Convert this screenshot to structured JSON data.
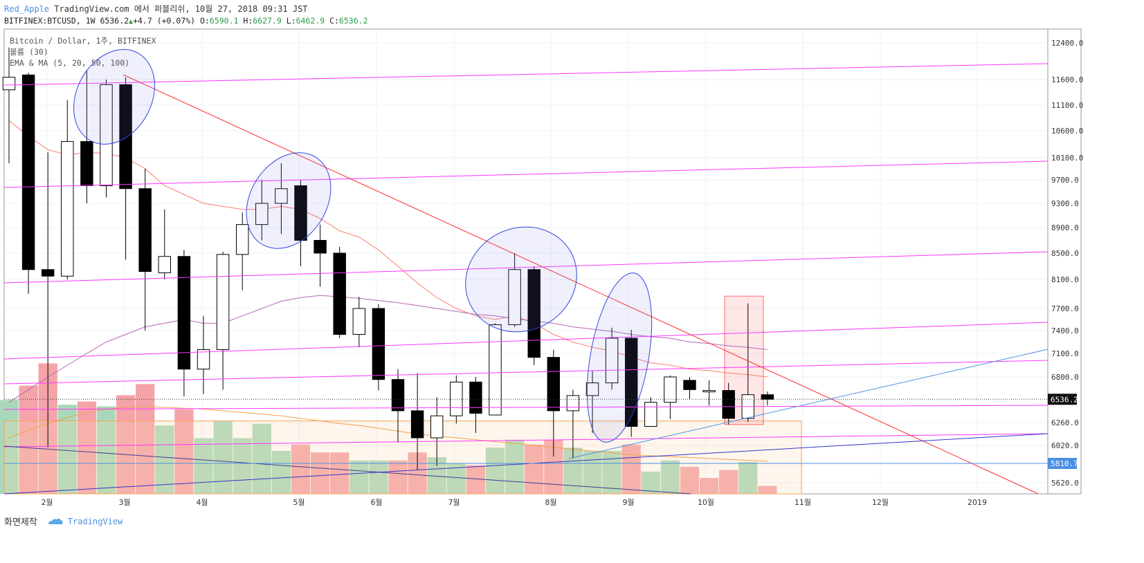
{
  "header": {
    "user": "Red_Apple",
    "published": "TradingView.com 에서 퍼블리쉬, 10월 27, 2018 09:31 JST",
    "symbol": "BITFINEX:BTCUSD, 1W",
    "last": "6536.2",
    "change": "+4.7 (+0.07%)",
    "o_label": "O:",
    "o_val": "6590.1",
    "h_label": "H:",
    "h_val": "6627.9",
    "l_label": "L:",
    "l_val": "6462.9",
    "c_label": "C:",
    "c_val": "6536.2"
  },
  "legend": [
    "Bitcoin / Dollar, 1주, BITFINEX",
    "볼륨 (30)",
    "EMA & MA (5, 20, 50, 100)"
  ],
  "footer": {
    "made_by": "화면제작",
    "brand": "TradingView"
  },
  "colors": {
    "up_body": "#ffffff",
    "down_body": "#000000",
    "vol_up": "#a8d8b9",
    "vol_down": "#f4a3a8",
    "channel": "#ff33ff",
    "trend": "#ff2d2d",
    "support": "#4a90e2",
    "support2": "#3333cc",
    "ema20": "#ff7b6b",
    "ma50": "#b565b5",
    "ma100": "#f0a050",
    "ellipse": "#3344dd",
    "box_red": "#ff6666",
    "box_orange": "#f5a35a"
  },
  "chart_data": {
    "type": "candlestick",
    "title": "Bitcoin / Dollar, 1주, BITFINEX",
    "x_labels": [
      "2월",
      "3월",
      "4월",
      "5월",
      "6월",
      "7월",
      "8월",
      "9월",
      "10월",
      "11월",
      "12월",
      "2019"
    ],
    "y_ticks": [
      12400,
      11600,
      11100,
      10600,
      10100,
      9700,
      9300,
      8900,
      8500,
      8100,
      7700,
      7400,
      7100,
      6800,
      6260,
      6020,
      5620
    ],
    "y_ticks_label": [
      "12400.0",
      "11600.0",
      "11100.0",
      "10600.0",
      "10100.0",
      "9700.0",
      "9300.0",
      "8900.0",
      "8500.0",
      "8100.0",
      "7700.0",
      "7400.0",
      "7100.0",
      "6800.0",
      "6260.0",
      "6020.0",
      "5620.0"
    ],
    "last_price_label": "6536.2",
    "support_label": "5810.7",
    "candles": [
      {
        "o": 11400,
        "h": 12300,
        "l": 10000,
        "c": 11650
      },
      {
        "o": 11700,
        "h": 11750,
        "l": 7900,
        "c": 8250
      },
      {
        "o": 8250,
        "h": 10200,
        "l": 6000,
        "c": 8150
      },
      {
        "o": 8150,
        "h": 11200,
        "l": 8100,
        "c": 10400
      },
      {
        "o": 10400,
        "h": 11800,
        "l": 9300,
        "c": 9600
      },
      {
        "o": 9600,
        "h": 11600,
        "l": 9400,
        "c": 11500
      },
      {
        "o": 11500,
        "h": 11650,
        "l": 8400,
        "c": 9550
      },
      {
        "o": 9550,
        "h": 9900,
        "l": 7400,
        "c": 8220
      },
      {
        "o": 8200,
        "h": 9200,
        "l": 8100,
        "c": 8450
      },
      {
        "o": 8450,
        "h": 8550,
        "l": 6570,
        "c": 6900
      },
      {
        "o": 6900,
        "h": 7600,
        "l": 6600,
        "c": 7150
      },
      {
        "o": 7150,
        "h": 8520,
        "l": 6650,
        "c": 8480
      },
      {
        "o": 8480,
        "h": 9150,
        "l": 7950,
        "c": 8950
      },
      {
        "o": 8950,
        "h": 9700,
        "l": 8700,
        "c": 9300
      },
      {
        "o": 9300,
        "h": 10000,
        "l": 8800,
        "c": 9550
      },
      {
        "o": 9600,
        "h": 9700,
        "l": 8300,
        "c": 8700
      },
      {
        "o": 8700,
        "h": 8950,
        "l": 8000,
        "c": 8500
      },
      {
        "o": 8500,
        "h": 8600,
        "l": 7300,
        "c": 7350
      },
      {
        "o": 7350,
        "h": 7860,
        "l": 7180,
        "c": 7700
      },
      {
        "o": 7700,
        "h": 7760,
        "l": 6640,
        "c": 6770
      },
      {
        "o": 6770,
        "h": 6900,
        "l": 6050,
        "c": 6400
      },
      {
        "o": 6400,
        "h": 6850,
        "l": 5755,
        "c": 6100
      },
      {
        "o": 6100,
        "h": 6560,
        "l": 5800,
        "c": 6340
      },
      {
        "o": 6340,
        "h": 6820,
        "l": 6250,
        "c": 6740
      },
      {
        "o": 6740,
        "h": 6800,
        "l": 6150,
        "c": 6370
      },
      {
        "o": 6350,
        "h": 7500,
        "l": 6350,
        "c": 7480
      },
      {
        "o": 7480,
        "h": 8500,
        "l": 7450,
        "c": 8250
      },
      {
        "o": 8250,
        "h": 8300,
        "l": 6950,
        "c": 7050
      },
      {
        "o": 7050,
        "h": 7150,
        "l": 5900,
        "c": 6400
      },
      {
        "o": 6400,
        "h": 6650,
        "l": 5880,
        "c": 6580
      },
      {
        "o": 6580,
        "h": 6880,
        "l": 6150,
        "c": 6730
      },
      {
        "o": 6730,
        "h": 7440,
        "l": 6650,
        "c": 7300
      },
      {
        "o": 7300,
        "h": 7410,
        "l": 6110,
        "c": 6220
      },
      {
        "o": 6220,
        "h": 6560,
        "l": 6220,
        "c": 6500
      },
      {
        "o": 6500,
        "h": 6820,
        "l": 6300,
        "c": 6800
      },
      {
        "o": 6760,
        "h": 6800,
        "l": 6540,
        "c": 6650
      },
      {
        "o": 6640,
        "h": 6760,
        "l": 6460,
        "c": 6640
      },
      {
        "o": 6640,
        "h": 6730,
        "l": 6240,
        "c": 6310
      },
      {
        "o": 6310,
        "h": 7770,
        "l": 6270,
        "c": 6590
      },
      {
        "o": 6590,
        "h": 6628,
        "l": 6463,
        "c": 6536
      }
    ],
    "volume": [
      {
        "v": 0.59,
        "up": true
      },
      {
        "v": 0.68,
        "up": false
      },
      {
        "v": 0.82,
        "up": false
      },
      {
        "v": 0.56,
        "up": true
      },
      {
        "v": 0.58,
        "up": false
      },
      {
        "v": 0.55,
        "up": true
      },
      {
        "v": 0.62,
        "up": false
      },
      {
        "v": 0.69,
        "up": false
      },
      {
        "v": 0.43,
        "up": true
      },
      {
        "v": 0.53,
        "up": false
      },
      {
        "v": 0.35,
        "up": true
      },
      {
        "v": 0.46,
        "up": true
      },
      {
        "v": 0.35,
        "up": true
      },
      {
        "v": 0.44,
        "up": true
      },
      {
        "v": 0.27,
        "up": true
      },
      {
        "v": 0.31,
        "up": false
      },
      {
        "v": 0.26,
        "up": false
      },
      {
        "v": 0.26,
        "up": false
      },
      {
        "v": 0.21,
        "up": true
      },
      {
        "v": 0.21,
        "up": true
      },
      {
        "v": 0.21,
        "up": false
      },
      {
        "v": 0.26,
        "up": false
      },
      {
        "v": 0.23,
        "up": true
      },
      {
        "v": 0.19,
        "up": true
      },
      {
        "v": 0.18,
        "up": false
      },
      {
        "v": 0.29,
        "up": true
      },
      {
        "v": 0.34,
        "up": true
      },
      {
        "v": 0.31,
        "up": false
      },
      {
        "v": 0.34,
        "up": false
      },
      {
        "v": 0.29,
        "up": true
      },
      {
        "v": 0.27,
        "up": true
      },
      {
        "v": 0.27,
        "up": true
      },
      {
        "v": 0.31,
        "up": false
      },
      {
        "v": 0.14,
        "up": true
      },
      {
        "v": 0.21,
        "up": true
      },
      {
        "v": 0.17,
        "up": false
      },
      {
        "v": 0.1,
        "up": false
      },
      {
        "v": 0.15,
        "up": false
      },
      {
        "v": 0.2,
        "up": true
      },
      {
        "v": 0.05,
        "up": false
      }
    ],
    "ema20": [
      10800,
      10500,
      10250,
      10150,
      10200,
      10180,
      10100,
      9900,
      9600,
      9450,
      9300,
      9250,
      9200,
      9200,
      9250,
      9200,
      9050,
      8850,
      8750,
      8550,
      8300,
      8050,
      7850,
      7700,
      7600,
      7550,
      7600,
      7500,
      7350,
      7250,
      7180,
      7130,
      7050,
      6980,
      6950,
      6900,
      6880,
      6850,
      6830,
      6800
    ],
    "ma50": [
      6500,
      6650,
      6800,
      6950,
      7100,
      7250,
      7350,
      7450,
      7500,
      7550,
      7500,
      7500,
      7600,
      7700,
      7800,
      7850,
      7880,
      7860,
      7840,
      7810,
      7780,
      7740,
      7700,
      7660,
      7620,
      7600,
      7560,
      7530,
      7500,
      7450,
      7420,
      7390,
      7350,
      7320,
      7300,
      7250,
      7230,
      7200,
      7180,
      7150
    ],
    "ma100": [
      6100,
      6180,
      6250,
      6320,
      6380,
      6420,
      6440,
      6450,
      6440,
      6430,
      6420,
      6400,
      6380,
      6360,
      6340,
      6310,
      6280,
      6250,
      6230,
      6200,
      6170,
      6140,
      6120,
      6100,
      6080,
      6060,
      6040,
      6020,
      6000,
      5980,
      5960,
      5940,
      5920,
      5910,
      5900,
      5890,
      5880,
      5870,
      5860,
      5850
    ]
  }
}
